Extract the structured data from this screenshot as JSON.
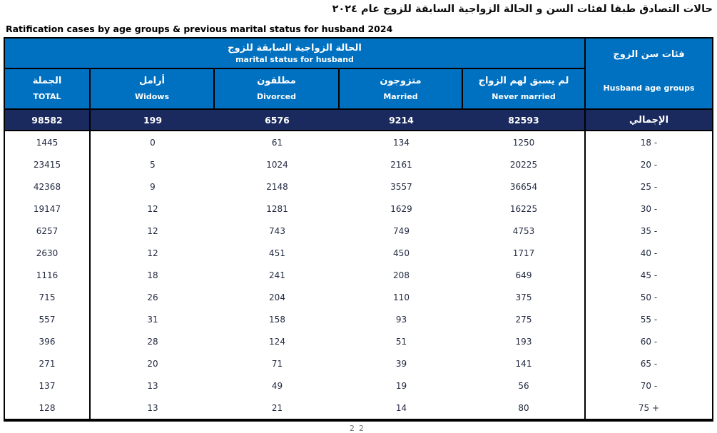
{
  "page": {
    "title_ar": "حالات التصادق طبقا لفئات السن و الحالة الزواجية السابقة للزوج  عام ٢٠٢٤",
    "title_en": "Ratification cases by age groups & previous marital status for husband 2024",
    "page_number_fragment": "22"
  },
  "colors": {
    "header_blue": "#0070C0",
    "total_navy": "#1B2A5E",
    "border_black": "#000000",
    "body_text": "#232B42"
  },
  "table": {
    "group_header": {
      "ar": "الحالة الزواجية السابقة للزوج",
      "en": "marital status for husband"
    },
    "age_header": {
      "ar": "فئات سن الزوج",
      "en": "Husband age groups"
    },
    "columns": [
      {
        "key": "total",
        "ar": "الجملة",
        "en": "TOTAL"
      },
      {
        "key": "widows",
        "ar": "أرامل",
        "en": "Widows"
      },
      {
        "key": "divorced",
        "ar": "مطلقون",
        "en": "Divorced"
      },
      {
        "key": "married",
        "ar": "متزوجون",
        "en": "Married"
      },
      {
        "key": "never_married",
        "ar": "لم يسبق لهم الزواج",
        "en": "Never married"
      }
    ],
    "total_row": {
      "label": "الإجمالي",
      "total": "98582",
      "widows": "199",
      "divorced": "6576",
      "married": "9214",
      "never_married": "82593"
    },
    "rows": [
      {
        "age": "18 -",
        "total": "1445",
        "widows": "0",
        "divorced": "61",
        "married": "134",
        "never_married": "1250"
      },
      {
        "age": "20 -",
        "total": "23415",
        "widows": "5",
        "divorced": "1024",
        "married": "2161",
        "never_married": "20225"
      },
      {
        "age": "25 -",
        "total": "42368",
        "widows": "9",
        "divorced": "2148",
        "married": "3557",
        "never_married": "36654"
      },
      {
        "age": "30 -",
        "total": "19147",
        "widows": "12",
        "divorced": "1281",
        "married": "1629",
        "never_married": "16225"
      },
      {
        "age": "35 -",
        "total": "6257",
        "widows": "12",
        "divorced": "743",
        "married": "749",
        "never_married": "4753"
      },
      {
        "age": "40 -",
        "total": "2630",
        "widows": "12",
        "divorced": "451",
        "married": "450",
        "never_married": "1717"
      },
      {
        "age": "45 -",
        "total": "1116",
        "widows": "18",
        "divorced": "241",
        "married": "208",
        "never_married": "649"
      },
      {
        "age": "50 -",
        "total": "715",
        "widows": "26",
        "divorced": "204",
        "married": "110",
        "never_married": "375"
      },
      {
        "age": "55 -",
        "total": "557",
        "widows": "31",
        "divorced": "158",
        "married": "93",
        "never_married": "275"
      },
      {
        "age": "60 -",
        "total": "396",
        "widows": "28",
        "divorced": "124",
        "married": "51",
        "never_married": "193"
      },
      {
        "age": "65 -",
        "total": "271",
        "widows": "20",
        "divorced": "71",
        "married": "39",
        "never_married": "141"
      },
      {
        "age": "70 -",
        "total": "137",
        "widows": "13",
        "divorced": "49",
        "married": "19",
        "never_married": "56"
      },
      {
        "age": "75 +",
        "total": "128",
        "widows": "13",
        "divorced": "21",
        "married": "14",
        "never_married": "80"
      }
    ]
  }
}
